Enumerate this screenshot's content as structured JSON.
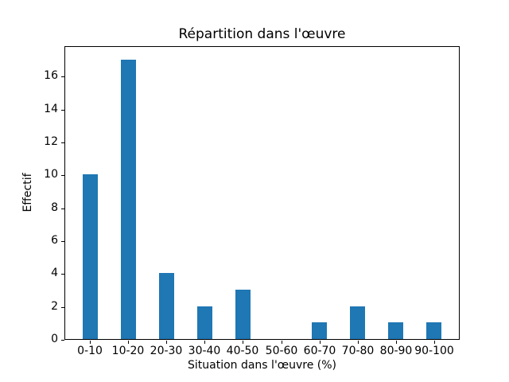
{
  "chart_data": {
    "type": "bar",
    "title": "Répartition dans l'œuvre",
    "xlabel": "Situation dans l'œuvre (%)",
    "ylabel": "Effectif",
    "categories": [
      "0-10",
      "10-20",
      "20-30",
      "30-40",
      "40-50",
      "50-60",
      "60-70",
      "70-80",
      "80-90",
      "90-100"
    ],
    "values": [
      10,
      17,
      4,
      2,
      3,
      0,
      1,
      2,
      1,
      1
    ],
    "bar_color": "#1f77b4",
    "ylim": [
      0,
      17.85
    ],
    "yticks": [
      0,
      2,
      4,
      6,
      8,
      10,
      12,
      14,
      16
    ],
    "bar_width_fraction": 0.4,
    "grid": false,
    "background_color": "#ffffff",
    "spine_color": "#000000"
  }
}
